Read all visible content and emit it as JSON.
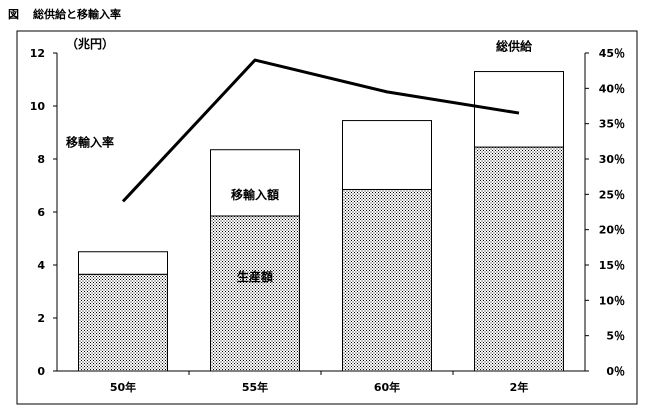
{
  "figure": {
    "label": "図",
    "caption": "総供給と移輸入率"
  },
  "chart_data": {
    "type": "bar",
    "stacked": true,
    "categories": [
      "50年",
      "55年",
      "60年",
      "2年"
    ],
    "series": [
      {
        "name": "生産額",
        "values": [
          3.65,
          5.85,
          6.85,
          8.45
        ],
        "fill": "dotted"
      },
      {
        "name": "移輸入額",
        "values": [
          0.85,
          2.5,
          2.6,
          2.85
        ],
        "fill": "white"
      }
    ],
    "totals_label": "総供給",
    "totals": [
      4.5,
      8.35,
      9.45,
      11.3
    ],
    "line": {
      "name": "移輸入率",
      "values": [
        24,
        44,
        39.5,
        36.5
      ],
      "axis": "right"
    },
    "y_left": {
      "unit": "（兆円）",
      "min": 0,
      "max": 12,
      "ticks": [
        "0",
        "2",
        "4",
        "6",
        "8",
        "10",
        "12"
      ]
    },
    "y_right": {
      "min": 0,
      "max": 45,
      "ticks": [
        "0％",
        "5％",
        "10％",
        "15％",
        "20％",
        "25％",
        "30％",
        "35％",
        "40％",
        "45％"
      ]
    },
    "grid": false,
    "legend": "inline labels"
  }
}
